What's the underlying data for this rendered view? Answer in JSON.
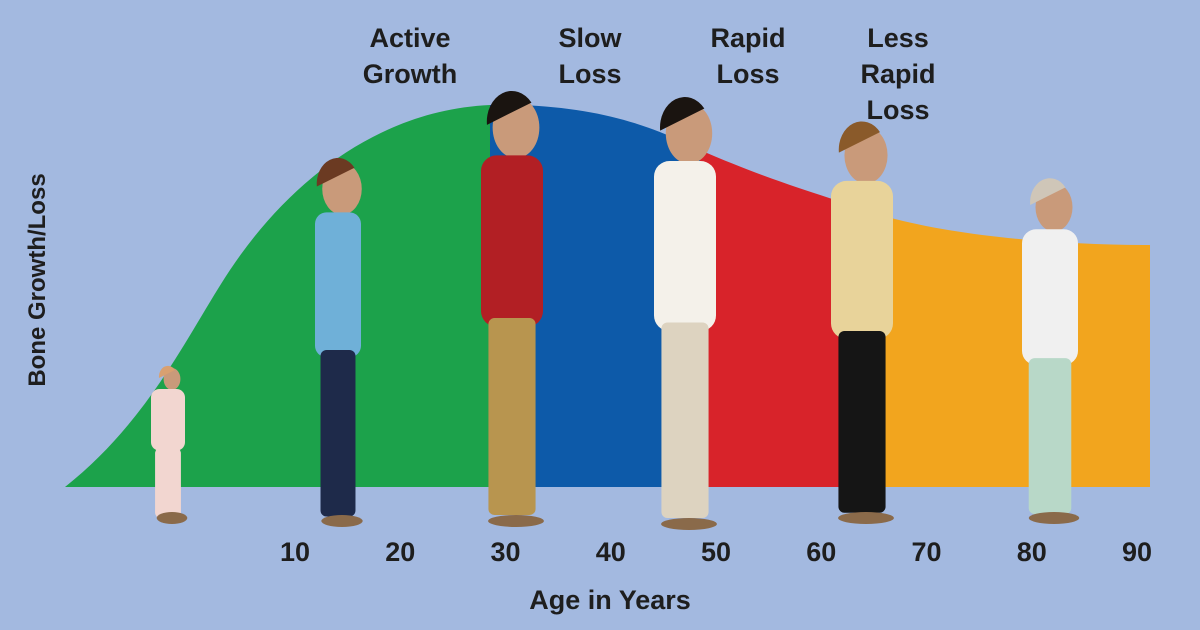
{
  "y_axis_label": "Bone Growth/Loss",
  "x_axis_label": "Age in Years",
  "x_ticks": [
    "10",
    "20",
    "30",
    "40",
    "50",
    "60",
    "70",
    "80",
    "90"
  ],
  "phases": [
    {
      "label": "Active Growth"
    },
    {
      "label": "Slow Loss"
    },
    {
      "label": "Rapid Loss"
    },
    {
      "label": "Less Rapid Loss"
    }
  ]
}
